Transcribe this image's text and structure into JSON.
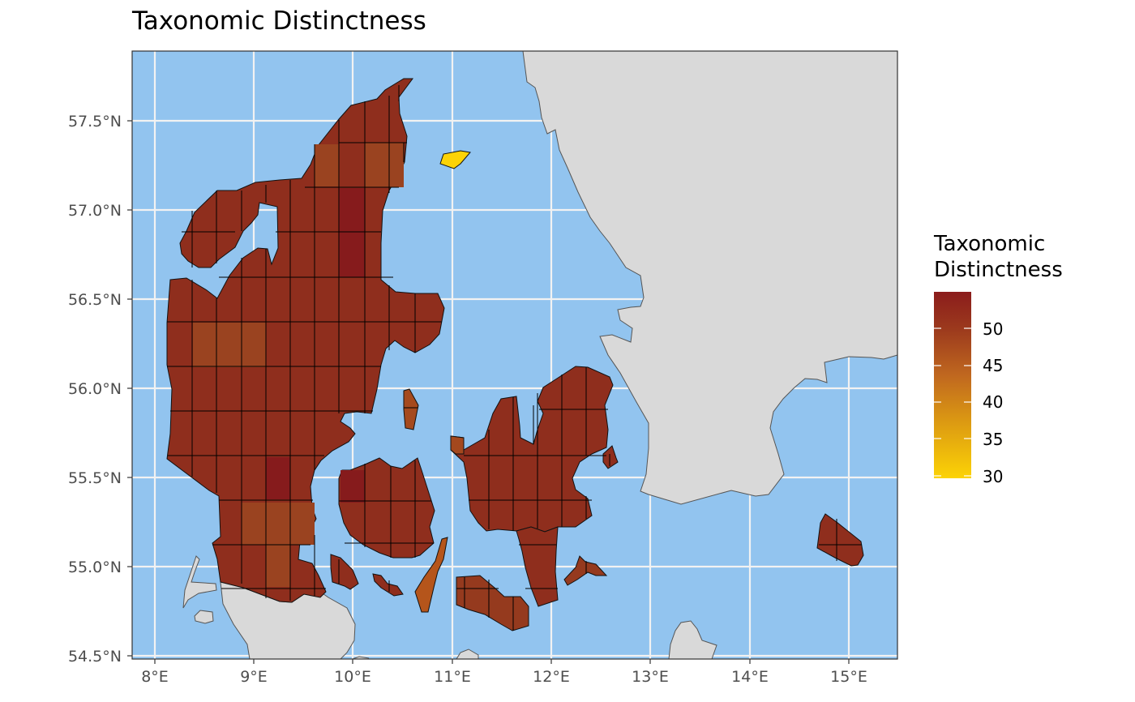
{
  "title": "Taxonomic Distinctness",
  "colors": {
    "sea": "#92c4ef",
    "land": "#d9d9d9",
    "grid": "#f2f2f2",
    "scale_low": "#fcd306",
    "scale_mid": "#c8751f",
    "scale_high": "#8b1c1c"
  },
  "axes": {
    "x_ticks": [
      "8°E",
      "9°E",
      "10°E",
      "11°E",
      "12°E",
      "13°E",
      "14°E",
      "15°E"
    ],
    "y_ticks": [
      "57.5°N",
      "57.0°N",
      "56.5°N",
      "56.0°N",
      "55.5°N",
      "55.0°N",
      "54.5°N"
    ]
  },
  "legend": {
    "title_line1": "Taxonomic",
    "title_line2": "Distinctness",
    "labels": [
      "50",
      "45",
      "40",
      "35",
      "30"
    ],
    "range": [
      30,
      54
    ]
  }
}
